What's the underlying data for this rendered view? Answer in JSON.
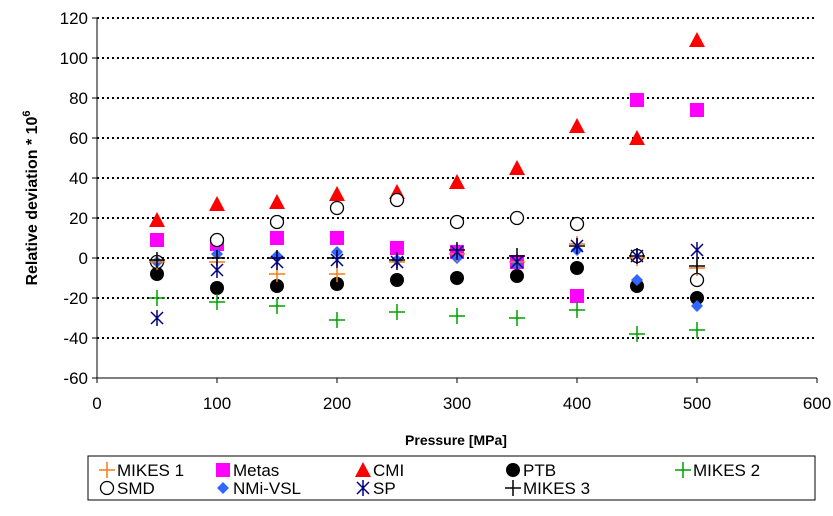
{
  "chart_data": {
    "type": "scatter",
    "xlabel": "Pressure [MPa]",
    "ylabel": "Relative deviation * 10",
    "ylabel_sup": "6",
    "xlim": [
      0,
      600
    ],
    "ylim": [
      -60,
      120
    ],
    "x_ticks": [
      "0",
      "100",
      "200",
      "300",
      "400",
      "500",
      "600"
    ],
    "y_ticks": [
      "-60",
      "-40",
      "-20",
      "0",
      "20",
      "40",
      "60",
      "80",
      "100",
      "120"
    ],
    "grid": "horizontal dotted",
    "legend_position": "bottom",
    "series": [
      {
        "name": "MIKES 1",
        "marker": "plus",
        "color": "#f07d1a",
        "x": [
          50,
          100,
          150,
          200,
          250,
          300,
          350,
          400,
          450,
          500
        ],
        "y": [
          -2,
          -2,
          -8,
          -8,
          -2,
          2,
          -2,
          7,
          0,
          -5
        ]
      },
      {
        "name": "Metas",
        "marker": "square",
        "color": "#ff00ff",
        "x": [
          50,
          100,
          150,
          200,
          250,
          300,
          350,
          400,
          450,
          500
        ],
        "y": [
          9,
          7,
          10,
          10,
          5,
          3,
          -2,
          -19,
          79,
          74
        ]
      },
      {
        "name": "CMI",
        "marker": "triangle",
        "color": "#ff0000",
        "x": [
          50,
          100,
          150,
          200,
          250,
          300,
          350,
          400,
          450,
          500
        ],
        "y": [
          19,
          27,
          28,
          32,
          33,
          38,
          45,
          66,
          60,
          109
        ]
      },
      {
        "name": "PTB",
        "marker": "circle-filled",
        "color": "#000000",
        "x": [
          50,
          100,
          150,
          200,
          250,
          300,
          350,
          400,
          450,
          500
        ],
        "y": [
          -8,
          -15,
          -14,
          -13,
          -11,
          -10,
          -9,
          -5,
          -14,
          -20
        ]
      },
      {
        "name": "MIKES 2",
        "marker": "plus",
        "color": "#00a000",
        "x": [
          50,
          100,
          150,
          200,
          250,
          300,
          350,
          400,
          450,
          500
        ],
        "y": [
          -20,
          -22,
          -24,
          -31,
          -27,
          -29,
          -30,
          -26,
          -38,
          -36
        ]
      },
      {
        "name": "SMD",
        "marker": "circle-open",
        "color": "#000000",
        "x": [
          50,
          100,
          150,
          200,
          250,
          300,
          350,
          400,
          450,
          500
        ],
        "y": [
          -2,
          9,
          18,
          25,
          29,
          18,
          20,
          17,
          1,
          -11
        ]
      },
      {
        "name": "NMi-VSL",
        "marker": "diamond",
        "color": "#3366ff",
        "x": [
          50,
          100,
          150,
          200,
          250,
          300,
          350,
          400,
          450,
          500
        ],
        "y": [
          -2,
          2,
          1,
          3,
          -1,
          0,
          -3,
          4,
          -11,
          -24
        ]
      },
      {
        "name": "SP",
        "marker": "asterisk",
        "color": "#000080",
        "x": [
          50,
          100,
          150,
          200,
          250,
          300,
          350,
          400,
          450,
          500
        ],
        "y": [
          -30,
          -6,
          -2,
          -1,
          -2,
          3,
          -2,
          6,
          1,
          4
        ]
      },
      {
        "name": "MIKES 3",
        "marker": "plus",
        "color": "#000000",
        "x": [
          50,
          100,
          150,
          200,
          250,
          300,
          350,
          400,
          450,
          500
        ],
        "y": [
          -1,
          0,
          0,
          0,
          -1,
          4,
          1,
          6,
          1,
          -4
        ]
      }
    ]
  }
}
